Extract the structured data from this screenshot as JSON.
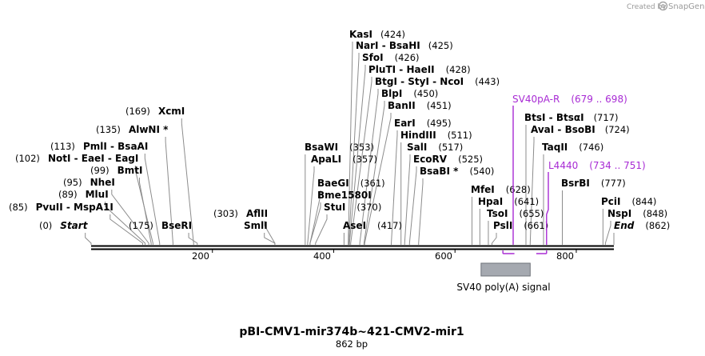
{
  "credit": {
    "created_by": "Created by",
    "brand": "SnapGene"
  },
  "title": "pBI-CMV1-mir374b~421-CMV2-mir1",
  "subtitle": "862 bp",
  "sequence": {
    "length": 862,
    "ticks": [
      "200",
      "400",
      "600",
      "800"
    ]
  },
  "sites": [
    {
      "label": "Start",
      "pos": "(0)",
      "bp": 0,
      "italic": true
    },
    {
      "label": "PvuII - MspA1I",
      "pos": "(85)",
      "bp": 85
    },
    {
      "label": "MluI",
      "pos": "(89)",
      "bp": 89
    },
    {
      "label": "NheI",
      "pos": "(95)",
      "bp": 95
    },
    {
      "label": "BmtI",
      "pos": "(99)",
      "bp": 99
    },
    {
      "label": "NotI - EaeI - EagI",
      "pos": "(102)",
      "bp": 102
    },
    {
      "label": "PmlI - BsaAI",
      "pos": "(113)",
      "bp": 113
    },
    {
      "label": "AlwNI *",
      "pos": "(135)",
      "bp": 135
    },
    {
      "label": "XcmI",
      "pos": "(169)",
      "bp": 169
    },
    {
      "label": "BseRI",
      "pos": "(175)",
      "bp": 175
    },
    {
      "label": "AflII",
      "pos": "(303)",
      "bp": 303
    },
    {
      "label": "SmlI",
      "pos": "",
      "bp": 303
    },
    {
      "label": "BsaWI",
      "pos": "(353)",
      "bp": 353
    },
    {
      "label": "ApaLI",
      "pos": "(357)",
      "bp": 357
    },
    {
      "label": "BaeGI",
      "pos": "(361)",
      "bp": 361
    },
    {
      "label": "Bme1580I",
      "pos": "",
      "bp": 361
    },
    {
      "label": "StuI",
      "pos": "(370)",
      "bp": 370
    },
    {
      "label": "AseI",
      "pos": "(417)",
      "bp": 417
    },
    {
      "label": "KasI",
      "pos": "(424)",
      "bp": 424
    },
    {
      "label": "NarI - BsaHI",
      "pos": "(425)",
      "bp": 425
    },
    {
      "label": "SfoI",
      "pos": "(426)",
      "bp": 426
    },
    {
      "label": "PluTI - HaeII",
      "pos": "(428)",
      "bp": 428
    },
    {
      "label": "BtgI - StyI - NcoI",
      "pos": "(443)",
      "bp": 443
    },
    {
      "label": "BlpI",
      "pos": "(450)",
      "bp": 450
    },
    {
      "label": "BanII",
      "pos": "(451)",
      "bp": 451
    },
    {
      "label": "EarI",
      "pos": "(495)",
      "bp": 495
    },
    {
      "label": "HindIII",
      "pos": "(511)",
      "bp": 511
    },
    {
      "label": "SalI",
      "pos": "(517)",
      "bp": 517
    },
    {
      "label": "EcoRV",
      "pos": "(525)",
      "bp": 525
    },
    {
      "label": "BsaBI *",
      "pos": "(540)",
      "bp": 540
    },
    {
      "label": "MfeI",
      "pos": "(628)",
      "bp": 628
    },
    {
      "label": "HpaI",
      "pos": "(641)",
      "bp": 641
    },
    {
      "label": "TsoI",
      "pos": "(655)",
      "bp": 655
    },
    {
      "label": "PslI",
      "pos": "(661)",
      "bp": 661
    },
    {
      "label": "BtsI - BtsαI",
      "pos": "(717)",
      "bp": 717
    },
    {
      "label": "AvaI - BsoBI",
      "pos": "(724)",
      "bp": 724
    },
    {
      "label": "TaqII",
      "pos": "(746)",
      "bp": 746
    },
    {
      "label": "BsrBI",
      "pos": "(777)",
      "bp": 777
    },
    {
      "label": "PciI",
      "pos": "(844)",
      "bp": 844
    },
    {
      "label": "NspI",
      "pos": "(848)",
      "bp": 848
    },
    {
      "label": "End",
      "pos": "(862)",
      "bp": 862,
      "italic": true
    }
  ],
  "primers": [
    {
      "label": "SV40pA-R",
      "pos": "(679 .. 698)",
      "start": 679,
      "end": 698
    },
    {
      "label": "L4440",
      "pos": "(734 .. 751)",
      "start": 734,
      "end": 751
    }
  ],
  "features": [
    {
      "label": "SV40 poly(A) signal",
      "start": 643,
      "end": 724,
      "color": "#a5a9b0"
    }
  ],
  "colors": {
    "primer": "#a82bd4",
    "backbone": "#000000",
    "leader": "#8c8c8c"
  }
}
